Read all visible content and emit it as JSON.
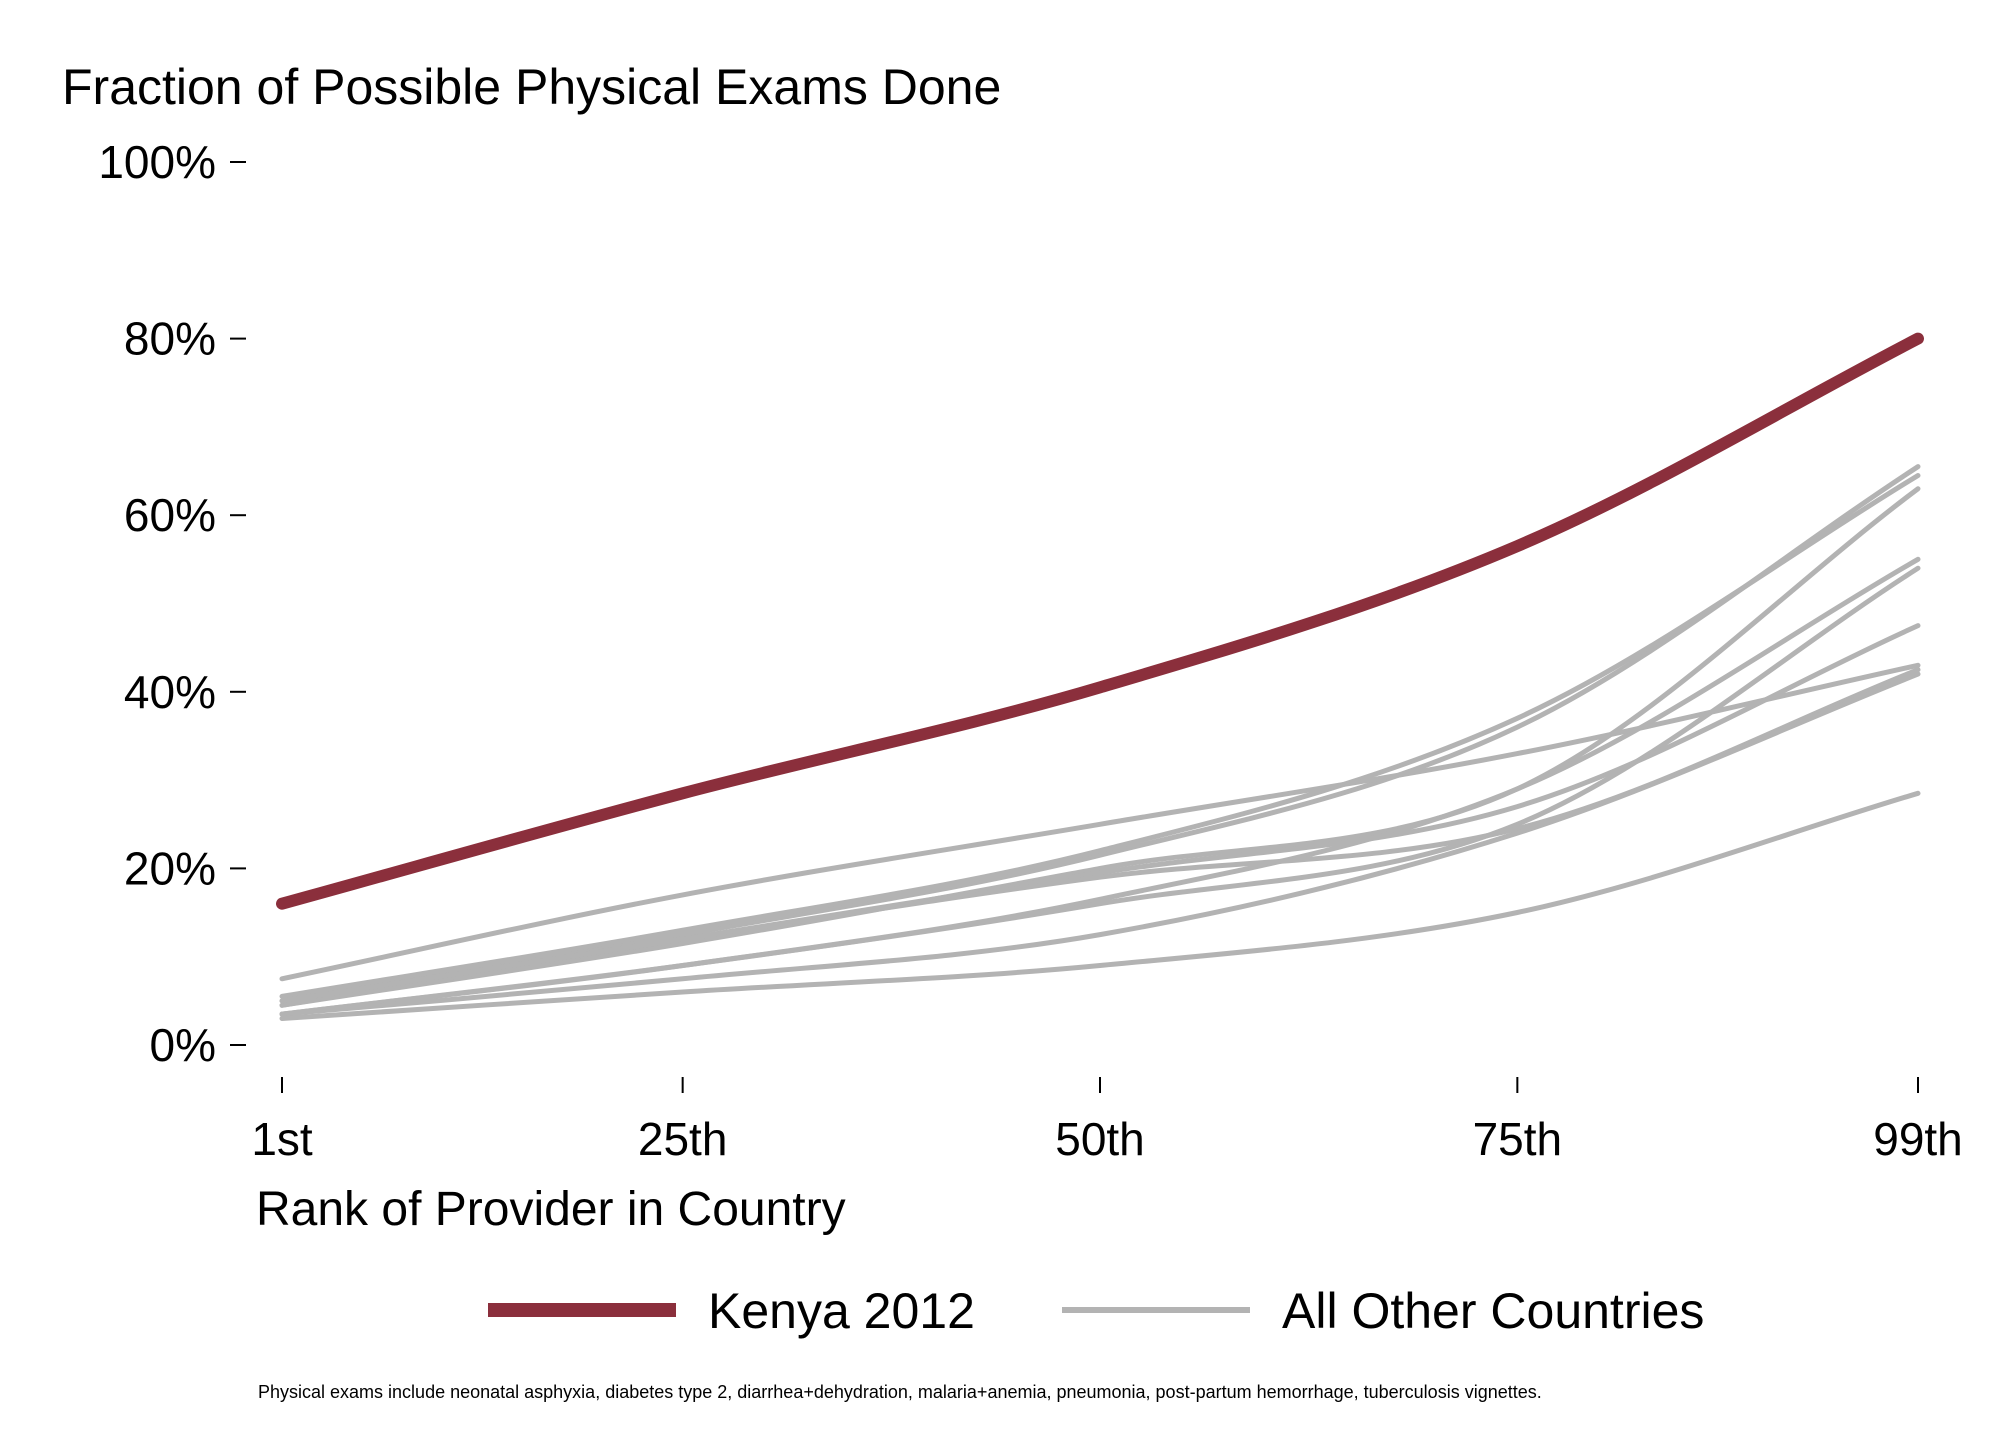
{
  "chart_data": {
    "type": "line",
    "title": "Fraction of Possible Physical Exams Done",
    "xlabel": "Rank of Provider in Country",
    "ylabel": "",
    "x_ticks": [
      {
        "value": 1,
        "label": "1st"
      },
      {
        "value": 25,
        "label": "25th"
      },
      {
        "value": 50,
        "label": "50th"
      },
      {
        "value": 75,
        "label": "75th"
      },
      {
        "value": 99,
        "label": "99th"
      }
    ],
    "y_ticks": [
      {
        "value": 0,
        "label": "0%"
      },
      {
        "value": 20,
        "label": "20%"
      },
      {
        "value": 40,
        "label": "40%"
      },
      {
        "value": 60,
        "label": "60%"
      },
      {
        "value": 80,
        "label": "80%"
      },
      {
        "value": 100,
        "label": "100%"
      }
    ],
    "xlim": [
      1,
      99
    ],
    "ylim": [
      0,
      100
    ],
    "grid": false,
    "legend_position": "bottom",
    "legend": [
      {
        "label": "Kenya 2012",
        "color": "#8b2f3c",
        "style": "thick"
      },
      {
        "label": "All Other Countries",
        "color": "#b3b3b3",
        "style": "thin"
      }
    ],
    "footnote": "Physical exams include neonatal asphyxia, diabetes type 2, diarrhea+dehydration, malaria+anemia, pneumonia, post-partum hemorrhage, tuberculosis vignettes.",
    "x": [
      1,
      25,
      50,
      75,
      99
    ],
    "highlight_series": {
      "legend_group": "Kenya 2012",
      "color": "#8b2f3c",
      "values": [
        16,
        28.5,
        40.5,
        56.5,
        80
      ]
    },
    "series": [
      {
        "legend_group": "All Other Countries",
        "color": "#b3b3b3",
        "values": [
          5,
          12.5,
          21.5,
          36,
          65.5
        ]
      },
      {
        "legend_group": "All Other Countries",
        "color": "#b3b3b3",
        "values": [
          5.5,
          13,
          22,
          37,
          64.5
        ]
      },
      {
        "legend_group": "All Other Countries",
        "color": "#b3b3b3",
        "values": [
          4.5,
          11.5,
          20,
          29,
          63
        ]
      },
      {
        "legend_group": "All Other Countries",
        "color": "#b3b3b3",
        "values": [
          3.5,
          9,
          16.5,
          29,
          55
        ]
      },
      {
        "legend_group": "All Other Countries",
        "color": "#b3b3b3",
        "values": [
          3.5,
          9,
          16,
          25,
          54
        ]
      },
      {
        "legend_group": "All Other Countries",
        "color": "#b3b3b3",
        "values": [
          4.5,
          12,
          19.5,
          27,
          47.5
        ]
      },
      {
        "legend_group": "All Other Countries",
        "color": "#b3b3b3",
        "values": [
          7.5,
          17,
          25,
          33,
          43
        ]
      },
      {
        "legend_group": "All Other Countries",
        "color": "#b3b3b3",
        "values": [
          5,
          12,
          19,
          24.5,
          42.5
        ]
      },
      {
        "legend_group": "All Other Countries",
        "color": "#b3b3b3",
        "values": [
          3.5,
          7.5,
          12.5,
          24,
          42
        ]
      },
      {
        "legend_group": "All Other Countries",
        "color": "#b3b3b3",
        "values": [
          3,
          6,
          9,
          15,
          28.5
        ]
      }
    ]
  }
}
